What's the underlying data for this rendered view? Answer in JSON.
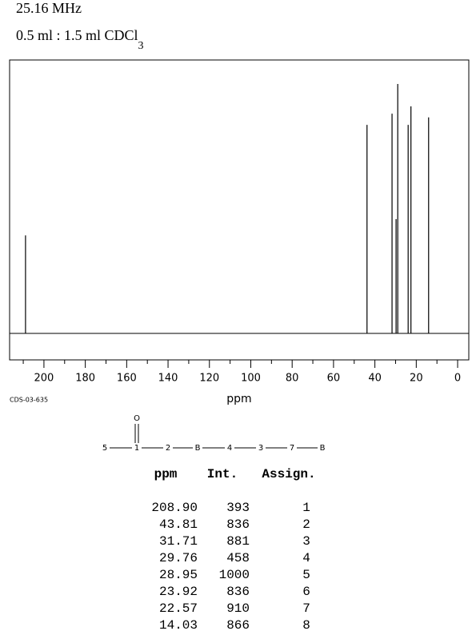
{
  "header": {
    "frequency": "25.16 MHz",
    "solvent": "0.5 ml : 1.5 ml CDCl",
    "solvent_subscript": "3",
    "code": "CDS-03-635"
  },
  "chart_data": {
    "type": "stick",
    "xlabel": "ppm",
    "x": [
      208.9,
      43.81,
      31.71,
      29.76,
      28.95,
      23.92,
      22.57,
      14.03
    ],
    "values": [
      393,
      836,
      881,
      458,
      1000,
      836,
      910,
      866
    ],
    "xlim": [
      216.6,
      -5.4
    ],
    "ylim": [
      -106,
      1096
    ],
    "xticks": [
      200,
      180,
      160,
      140,
      120,
      100,
      80,
      60,
      40,
      20,
      0
    ],
    "xticks_minor": [
      210,
      190,
      170,
      150,
      130,
      110,
      90,
      70,
      50,
      30,
      10
    ],
    "color": "#000000"
  },
  "structure": {
    "oxygen": "O",
    "chain": [
      "5",
      "1",
      "2",
      "B",
      "4",
      "3",
      "7",
      "B"
    ]
  },
  "table": {
    "columns": [
      "ppm",
      "Int.",
      "Assign."
    ],
    "rows": [
      [
        "208.90",
        "393",
        "1"
      ],
      [
        "43.81",
        "836",
        "2"
      ],
      [
        "31.71",
        "881",
        "3"
      ],
      [
        "29.76",
        "458",
        "4"
      ],
      [
        "28.95",
        "1000",
        "5"
      ],
      [
        "23.92",
        "836",
        "6"
      ],
      [
        "22.57",
        "910",
        "7"
      ],
      [
        "14.03",
        "866",
        "8"
      ]
    ]
  }
}
